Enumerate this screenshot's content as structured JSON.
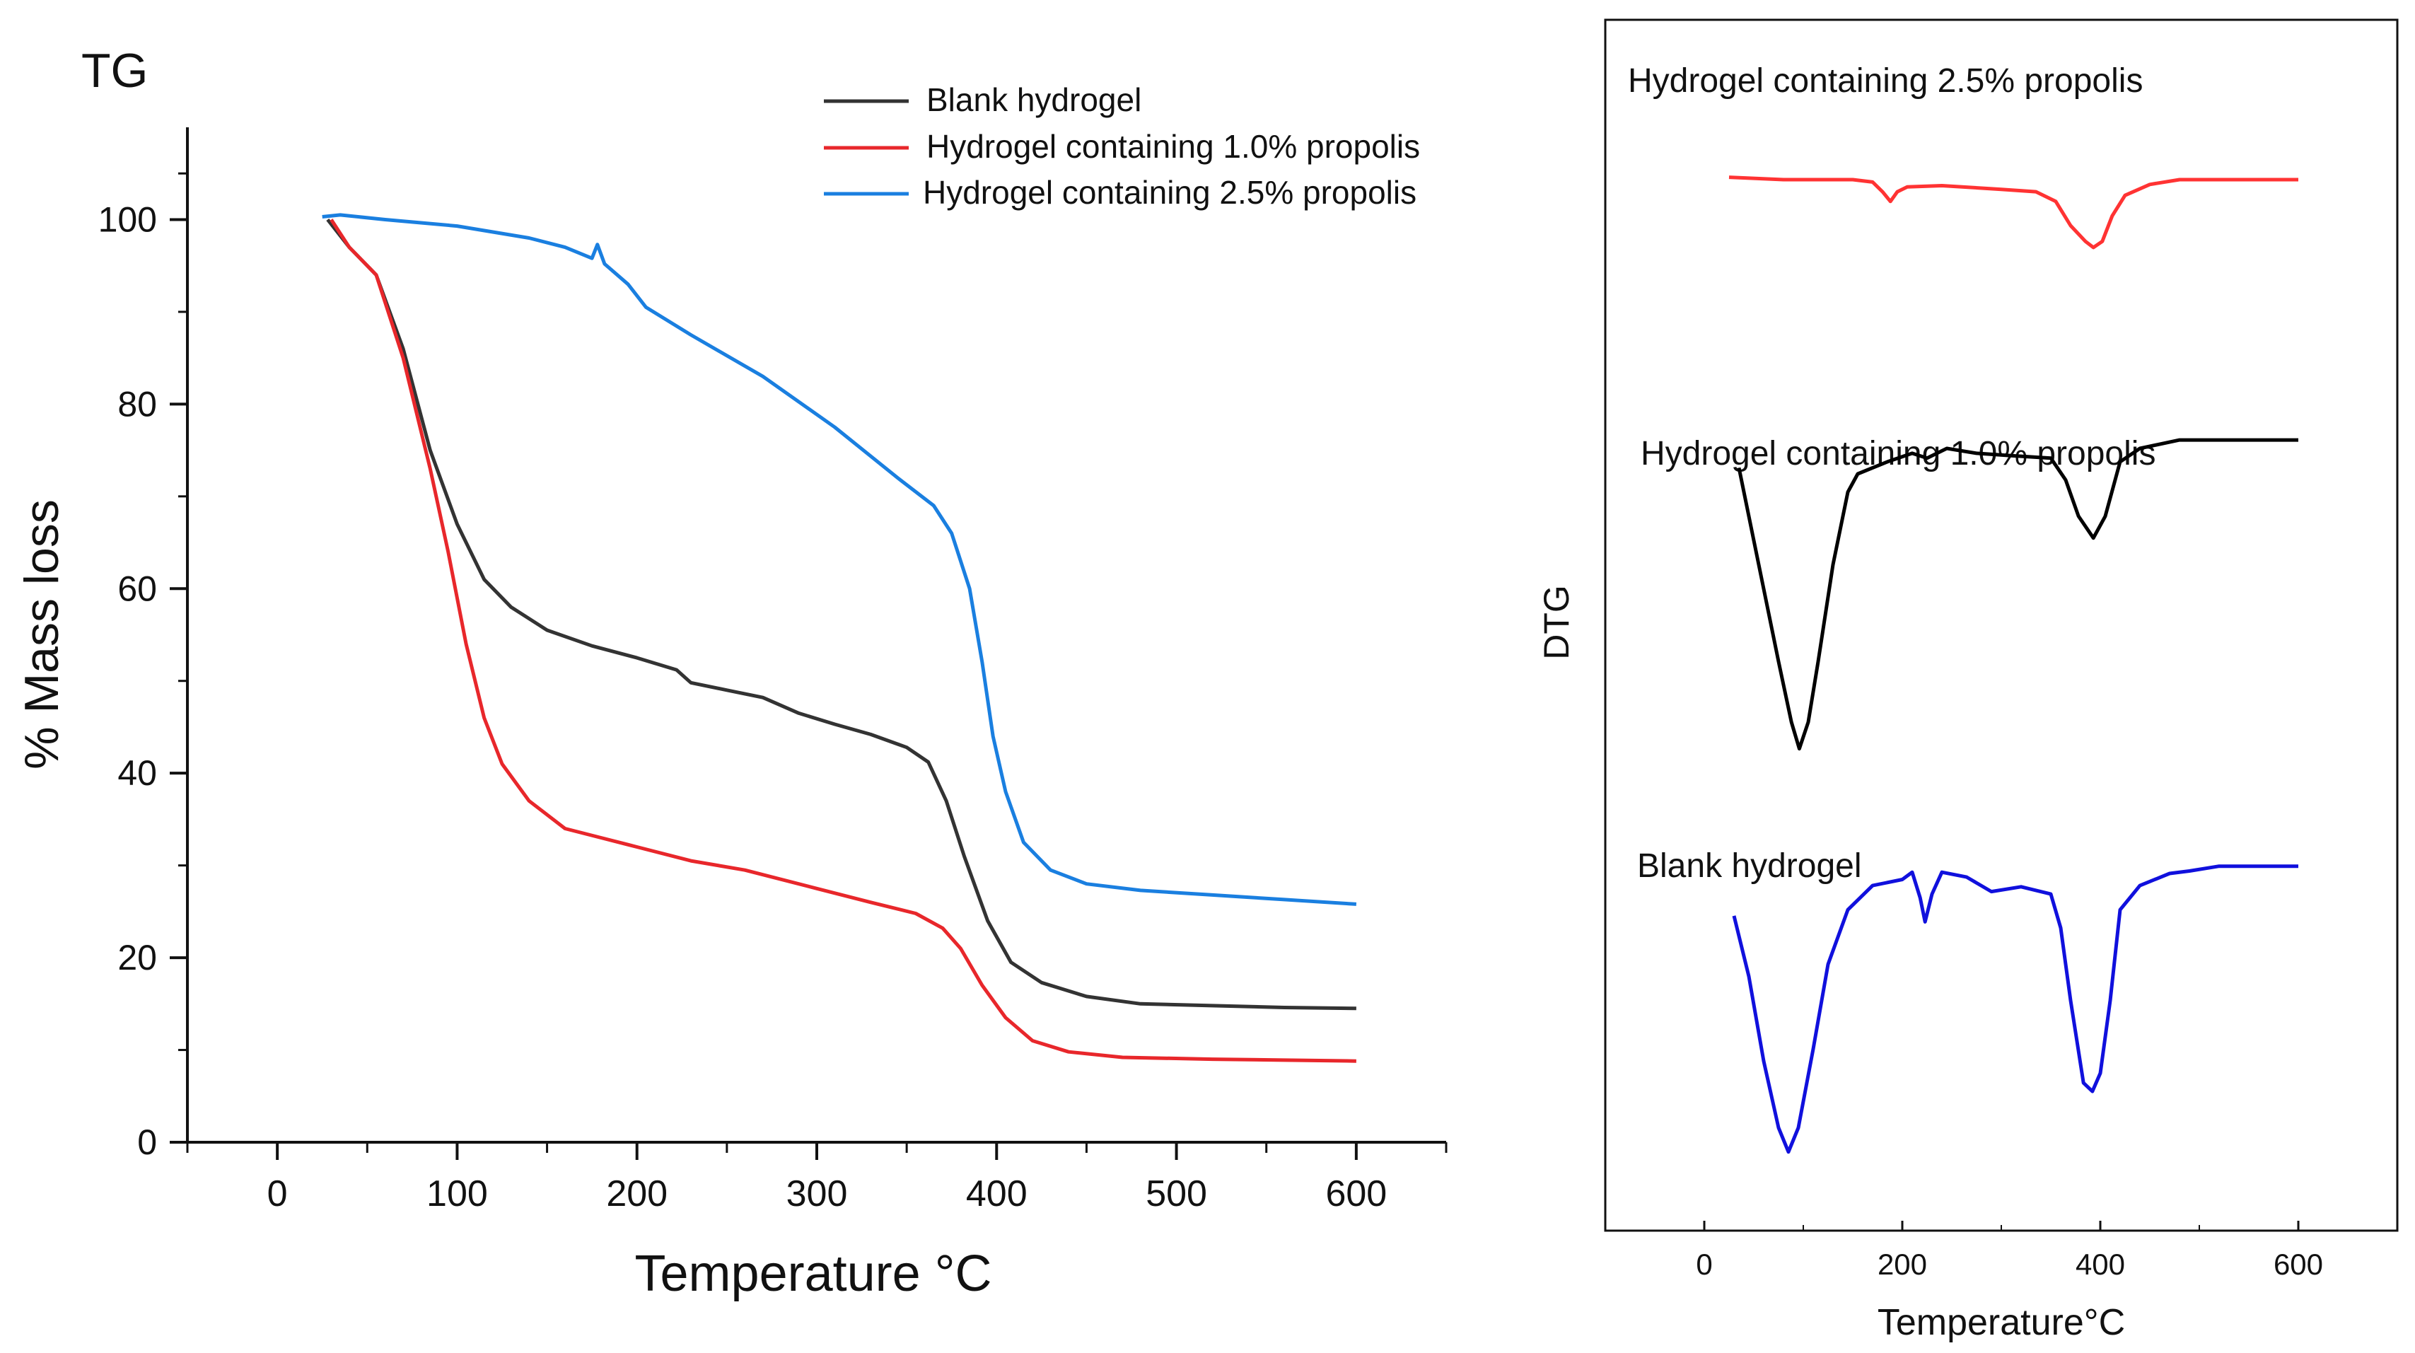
{
  "chart_data": [
    {
      "type": "line",
      "panel_label": "TG",
      "xlabel": "Temperature °C",
      "ylabel": "% Mass loss",
      "xlim": [
        -50,
        650
      ],
      "ylim": [
        0,
        110
      ],
      "xticks": [
        0,
        100,
        200,
        300,
        400,
        500,
        600
      ],
      "yticks": [
        0,
        20,
        40,
        60,
        80,
        100
      ],
      "xtick_labels": [
        "0",
        "100",
        "200",
        "300",
        "400",
        "500",
        "600"
      ],
      "ytick_labels": [
        "0",
        "20",
        "40",
        "60",
        "80",
        "100"
      ],
      "legend_position": "top-right",
      "series": [
        {
          "name": "Blank hydrogel",
          "color": "#333333",
          "points": [
            [
              28,
              100
            ],
            [
              40,
              97
            ],
            [
              55,
              94
            ],
            [
              70,
              86
            ],
            [
              85,
              75
            ],
            [
              100,
              67
            ],
            [
              115,
              61
            ],
            [
              130,
              58
            ],
            [
              150,
              55.5
            ],
            [
              175,
              53.8
            ],
            [
              200,
              52.5
            ],
            [
              222,
              51.2
            ],
            [
              230,
              49.8
            ],
            [
              250,
              49
            ],
            [
              270,
              48.2
            ],
            [
              290,
              46.5
            ],
            [
              310,
              45.3
            ],
            [
              330,
              44.2
            ],
            [
              350,
              42.8
            ],
            [
              362,
              41.2
            ],
            [
              372,
              37
            ],
            [
              382,
              31
            ],
            [
              395,
              24
            ],
            [
              408,
              19.5
            ],
            [
              425,
              17.3
            ],
            [
              450,
              15.8
            ],
            [
              480,
              15
            ],
            [
              520,
              14.8
            ],
            [
              560,
              14.6
            ],
            [
              600,
              14.5
            ]
          ]
        },
        {
          "name": "Hydrogel containing 1.0% propolis",
          "color": "#e8272b",
          "points": [
            [
              30,
              100
            ],
            [
              40,
              97
            ],
            [
              55,
              94
            ],
            [
              70,
              85
            ],
            [
              85,
              73
            ],
            [
              95,
              64
            ],
            [
              105,
              54
            ],
            [
              115,
              46
            ],
            [
              125,
              41
            ],
            [
              140,
              37
            ],
            [
              160,
              34
            ],
            [
              180,
              33
            ],
            [
              200,
              32
            ],
            [
              230,
              30.5
            ],
            [
              260,
              29.5
            ],
            [
              300,
              27.5
            ],
            [
              330,
              26
            ],
            [
              355,
              24.8
            ],
            [
              370,
              23.2
            ],
            [
              380,
              21
            ],
            [
              392,
              17
            ],
            [
              405,
              13.5
            ],
            [
              420,
              11
            ],
            [
              440,
              9.8
            ],
            [
              470,
              9.2
            ],
            [
              520,
              9
            ],
            [
              560,
              8.9
            ],
            [
              600,
              8.8
            ]
          ]
        },
        {
          "name": "Hydrogel containing 2.5% propolis",
          "color": "#1a7fe0",
          "points": [
            [
              25,
              100.3
            ],
            [
              35,
              100.5
            ],
            [
              60,
              100
            ],
            [
              100,
              99.3
            ],
            [
              140,
              98
            ],
            [
              160,
              97
            ],
            [
              175,
              95.8
            ],
            [
              178,
              97.3
            ],
            [
              182,
              95.2
            ],
            [
              195,
              93
            ],
            [
              205,
              90.5
            ],
            [
              230,
              87.5
            ],
            [
              270,
              83
            ],
            [
              310,
              77.5
            ],
            [
              345,
              72
            ],
            [
              365,
              69
            ],
            [
              375,
              66
            ],
            [
              385,
              60
            ],
            [
              392,
              52
            ],
            [
              398,
              44
            ],
            [
              405,
              38
            ],
            [
              415,
              32.5
            ],
            [
              430,
              29.5
            ],
            [
              450,
              28
            ],
            [
              480,
              27.3
            ],
            [
              520,
              26.8
            ],
            [
              560,
              26.3
            ],
            [
              600,
              25.8
            ]
          ]
        }
      ]
    },
    {
      "type": "line",
      "ylabel": "DTG",
      "xlabel": "Temperature°C",
      "xlim": [
        -100,
        700
      ],
      "ylim": [
        0,
        100
      ],
      "xticks": [
        0,
        200,
        400,
        600
      ],
      "xtick_labels": [
        "0",
        "200",
        "400",
        "600"
      ],
      "series": [
        {
          "name": "Hydrogel containing 2.5% propolis",
          "label_text": "Hydrogel containing 2.5% propolis",
          "color": "#ff3333",
          "points": [
            [
              25,
              87
            ],
            [
              80,
              86.8
            ],
            [
              150,
              86.8
            ],
            [
              170,
              86.6
            ],
            [
              180,
              85.8
            ],
            [
              188,
              85
            ],
            [
              195,
              85.8
            ],
            [
              205,
              86.2
            ],
            [
              240,
              86.3
            ],
            [
              300,
              86
            ],
            [
              335,
              85.8
            ],
            [
              355,
              85
            ],
            [
              370,
              83
            ],
            [
              385,
              81.7
            ],
            [
              393,
              81.2
            ],
            [
              402,
              81.7
            ],
            [
              412,
              83.8
            ],
            [
              425,
              85.5
            ],
            [
              450,
              86.4
            ],
            [
              480,
              86.8
            ],
            [
              540,
              86.8
            ],
            [
              600,
              86.8
            ]
          ]
        },
        {
          "name": "Hydrogel containing 1.0% propolis",
          "label_text": "Hydrogel containing 1.0% propolis",
          "color": "#000000",
          "points": [
            [
              35,
              63
            ],
            [
              45,
              59
            ],
            [
              60,
              53
            ],
            [
              75,
              47
            ],
            [
              88,
              42
            ],
            [
              96,
              39.8
            ],
            [
              105,
              42
            ],
            [
              115,
              47
            ],
            [
              130,
              55
            ],
            [
              145,
              61
            ],
            [
              155,
              62.5
            ],
            [
              185,
              63.5
            ],
            [
              210,
              64.2
            ],
            [
              225,
              63.8
            ],
            [
              245,
              64.6
            ],
            [
              275,
              64.2
            ],
            [
              310,
              64
            ],
            [
              350,
              63.8
            ],
            [
              365,
              62
            ],
            [
              378,
              59
            ],
            [
              393,
              57.2
            ],
            [
              405,
              59
            ],
            [
              420,
              63.5
            ],
            [
              440,
              64.6
            ],
            [
              480,
              65.3
            ],
            [
              540,
              65.3
            ],
            [
              600,
              65.3
            ]
          ]
        },
        {
          "name": "Blank hydrogel",
          "label_text": "Blank hydrogel",
          "color": "#1010dd",
          "points": [
            [
              30,
              26
            ],
            [
              45,
              21
            ],
            [
              60,
              14
            ],
            [
              75,
              8.5
            ],
            [
              85,
              6.5
            ],
            [
              95,
              8.5
            ],
            [
              110,
              15
            ],
            [
              125,
              22
            ],
            [
              145,
              26.5
            ],
            [
              170,
              28.5
            ],
            [
              200,
              29
            ],
            [
              210,
              29.6
            ],
            [
              218,
              27.5
            ],
            [
              223,
              25.5
            ],
            [
              230,
              27.8
            ],
            [
              240,
              29.6
            ],
            [
              265,
              29.2
            ],
            [
              290,
              28
            ],
            [
              320,
              28.4
            ],
            [
              350,
              27.8
            ],
            [
              360,
              25
            ],
            [
              370,
              19
            ],
            [
              383,
              12.2
            ],
            [
              392,
              11.5
            ],
            [
              400,
              13
            ],
            [
              410,
              19
            ],
            [
              420,
              26.5
            ],
            [
              440,
              28.5
            ],
            [
              470,
              29.5
            ],
            [
              490,
              29.7
            ],
            [
              520,
              30.1
            ],
            [
              560,
              30.1
            ],
            [
              600,
              30.1
            ]
          ]
        }
      ]
    }
  ]
}
